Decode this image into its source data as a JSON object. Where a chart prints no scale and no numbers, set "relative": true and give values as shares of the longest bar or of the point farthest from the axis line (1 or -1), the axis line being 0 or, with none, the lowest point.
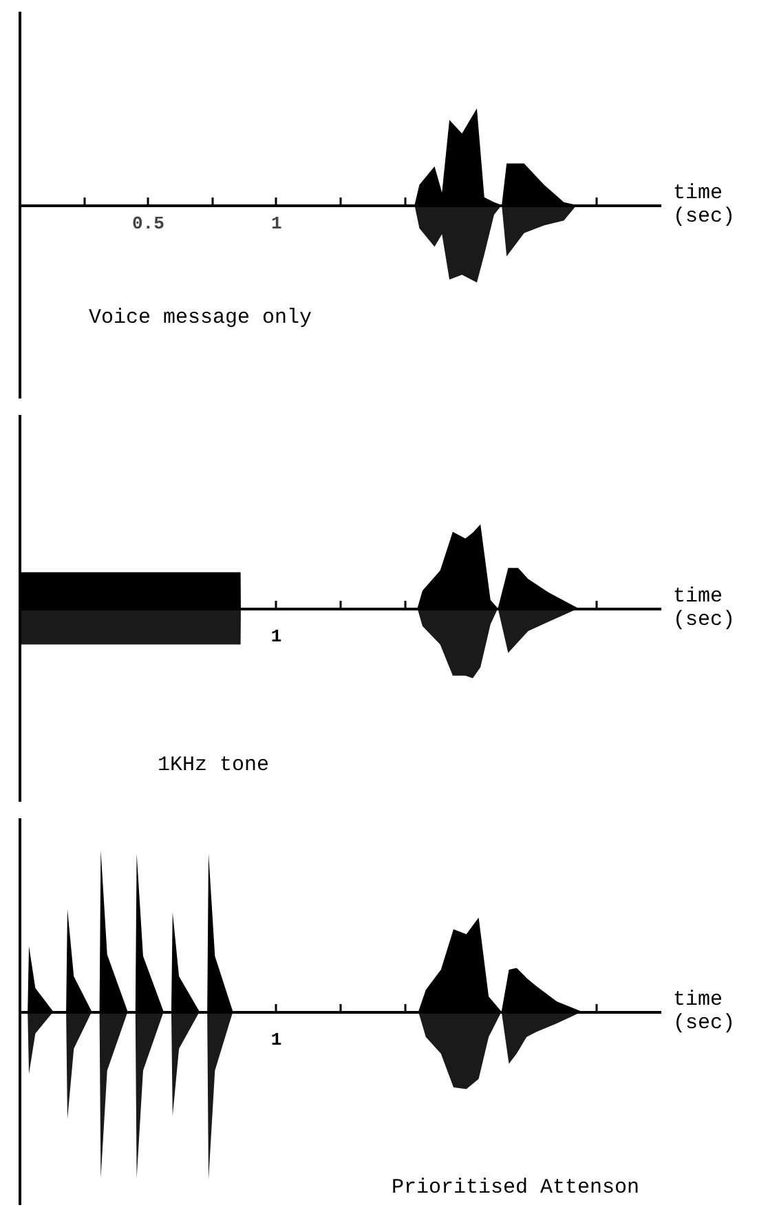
{
  "chart_data": [
    {
      "type": "area",
      "relative": true,
      "xlabel": "time (sec)",
      "annotations": [
        "Voice message only"
      ],
      "xlim": [
        0,
        2.5
      ],
      "xticks": [
        {
          "value": 0.25,
          "label": null
        },
        0.5,
        {
          "value": 0.75,
          "label": null
        },
        1,
        {
          "value": 1.25,
          "label": null
        },
        {
          "value": 1.5,
          "label": null
        },
        {
          "value": 1.75,
          "label": null
        },
        {
          "value": 2,
          "label": null
        },
        {
          "value": 2.25,
          "label": null
        }
      ],
      "tick_labels": "x",
      "grid": false,
      "x": [
        0,
        1.538,
        1.557,
        1.616,
        1.645,
        1.674,
        1.723,
        1.781,
        1.81,
        1.848,
        1.878,
        1.897,
        1.965,
        2.043,
        2.12,
        2.17
      ],
      "series": [
        {
          "color": "#000000",
          "values": [
            0,
            0,
            0.21,
            0.4,
            0.13,
            0.88,
            0.74,
            1.0,
            0.08,
            0.03,
            0,
            0.43,
            0.43,
            0.21,
            0.03,
            0
          ]
        },
        {
          "color": "#1a1a1a",
          "values": [
            0,
            0,
            -0.24,
            -0.43,
            -0.3,
            -0.77,
            -0.72,
            -0.8,
            -0.51,
            -0.1,
            0,
            -0.53,
            -0.29,
            -0.21,
            -0.16,
            0
          ]
        }
      ]
    },
    {
      "type": "area",
      "relative": true,
      "xlabel": "time (sec)",
      "annotations": [
        "1KHz tone",
        {
          "text": "1",
          "x": 1,
          "y": 0
        }
      ],
      "xlim": [
        0,
        2.5
      ],
      "xticks": [
        {
          "value": 0.25,
          "label": null
        },
        {
          "value": 0.5,
          "label": null
        },
        {
          "value": 0.75,
          "label": null
        },
        {
          "value": 1,
          "label": null
        },
        {
          "value": 1.25,
          "label": null
        },
        {
          "value": 1.5,
          "label": null
        },
        {
          "value": 1.75,
          "label": null
        },
        {
          "value": 2,
          "label": null
        },
        {
          "value": 2.25,
          "label": null
        }
      ],
      "tick_labels": false,
      "grid": false,
      "x": [
        0,
        0.005,
        0.86,
        0.861,
        1.549,
        1.569,
        1.638,
        1.687,
        1.736,
        1.765,
        1.795,
        1.834,
        1.863,
        1.903,
        1.942,
        1.981,
        2.06,
        2.177
      ],
      "series": [
        {
          "color": "#000000",
          "values": [
            0,
            0.43,
            0.43,
            0,
            0,
            0.21,
            0.45,
            0.91,
            0.83,
            0.9,
            1.0,
            0.1,
            0,
            0.48,
            0.48,
            0.35,
            0.19,
            0
          ]
        },
        {
          "color": "#1a1a1a",
          "values": [
            0,
            -0.43,
            -0.43,
            0,
            0,
            -0.21,
            -0.43,
            -0.8,
            -0.8,
            -0.83,
            -0.7,
            -0.19,
            0,
            -0.53,
            -0.4,
            -0.27,
            -0.16,
            0
          ]
        }
      ]
    },
    {
      "type": "area",
      "relative": true,
      "xlabel": "time (sec)",
      "annotations": [
        "Prioritised Attenson",
        {
          "text": "1",
          "x": 1,
          "y": 0
        }
      ],
      "xlim": [
        0,
        2.5
      ],
      "xticks": [
        {
          "value": 0.25,
          "label": null
        },
        {
          "value": 0.5,
          "label": null
        },
        {
          "value": 0.75,
          "label": null
        },
        {
          "value": 1,
          "label": null
        },
        {
          "value": 1.25,
          "label": null
        },
        {
          "value": 1.5,
          "label": null
        },
        {
          "value": 1.75,
          "label": null
        },
        {
          "value": 2,
          "label": null
        },
        {
          "value": 2.25,
          "label": null
        }
      ],
      "tick_labels": false,
      "grid": false,
      "x": [
        0,
        0.03,
        0.035,
        0.06,
        0.13,
        0.18,
        0.185,
        0.21,
        0.28,
        0.31,
        0.315,
        0.34,
        0.42,
        0.45,
        0.455,
        0.48,
        0.56,
        0.59,
        0.595,
        0.62,
        0.7,
        0.73,
        0.735,
        0.76,
        0.83,
        1.553,
        1.582,
        1.641,
        1.69,
        1.74,
        1.788,
        1.827,
        1.877,
        1.906,
        1.936,
        1.975,
        2.014,
        2.093,
        2.191
      ],
      "series": [
        {
          "color": "#000000",
          "values": [
            0,
            0,
            0.39,
            0.14,
            0,
            0,
            0.61,
            0.21,
            0,
            0,
            0.96,
            0.34,
            0,
            0,
            0.94,
            0.33,
            0,
            0,
            0.59,
            0.21,
            0,
            0,
            0.94,
            0.33,
            0,
            0,
            0.13,
            0.25,
            0.49,
            0.46,
            0.56,
            0.09,
            0,
            0.25,
            0.26,
            0.2,
            0.15,
            0.06,
            0
          ]
        },
        {
          "color": "#1a1a1a",
          "values": [
            0,
            0,
            -0.37,
            -0.13,
            0,
            0,
            -0.64,
            -0.22,
            0,
            0,
            -0.99,
            -0.35,
            0,
            0,
            -0.99,
            -0.35,
            0,
            0,
            -0.62,
            -0.22,
            0,
            0,
            -1.0,
            -0.35,
            0,
            0,
            -0.15,
            -0.25,
            -0.45,
            -0.46,
            -0.4,
            -0.15,
            0,
            -0.31,
            -0.25,
            -0.15,
            -0.12,
            -0.07,
            0
          ]
        }
      ]
    }
  ]
}
